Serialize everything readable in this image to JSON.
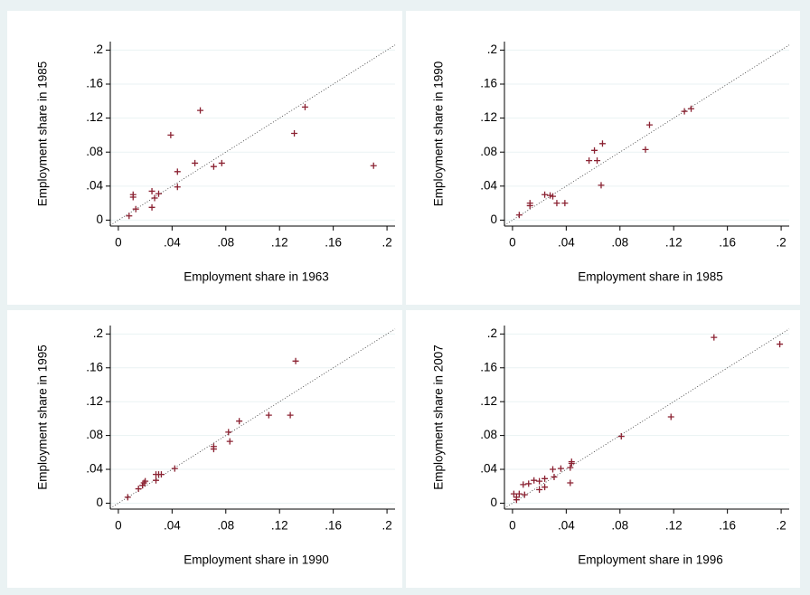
{
  "chart_data": [
    {
      "type": "scatter",
      "xlabel": "Employment share in 1963",
      "ylabel": "Employment share in 1985",
      "color": "#8b2232",
      "grid": true,
      "xlim": [
        -0.006,
        0.206
      ],
      "ylim": [
        -0.007,
        0.21
      ],
      "xticks": [
        0,
        {
          "value": 0.04,
          "label": ".04"
        },
        {
          "value": 0.08,
          "label": ".08"
        },
        {
          "value": 0.12,
          "label": ".12"
        },
        {
          "value": 0.16,
          "label": ".16"
        },
        {
          "value": 0.2,
          "label": ".2"
        }
      ],
      "yticks": [
        0,
        {
          "value": 0.04,
          "label": ".04"
        },
        {
          "value": 0.08,
          "label": ".08"
        },
        {
          "value": 0.12,
          "label": ".12"
        },
        {
          "value": 0.16,
          "label": ".16"
        },
        {
          "value": 0.2,
          "label": ".2"
        }
      ],
      "x": [
        0.008,
        0.011,
        0.011,
        0.013,
        0.025,
        0.025,
        0.027,
        0.03,
        0.039,
        0.044,
        0.044,
        0.057,
        0.061,
        0.071,
        0.077,
        0.131,
        0.139,
        0.19
      ],
      "values": [
        0.005,
        0.03,
        0.027,
        0.013,
        0.015,
        0.034,
        0.026,
        0.031,
        0.1,
        0.057,
        0.039,
        0.067,
        0.129,
        0.063,
        0.067,
        0.102,
        0.133,
        0.064
      ]
    },
    {
      "type": "scatter",
      "xlabel": "Employment share in 1985",
      "ylabel": "Employment share in 1990",
      "color": "#8b2232",
      "grid": true,
      "xlim": [
        -0.006,
        0.206
      ],
      "ylim": [
        -0.007,
        0.21
      ],
      "xticks": [
        0,
        {
          "value": 0.04,
          "label": ".04"
        },
        {
          "value": 0.08,
          "label": ".08"
        },
        {
          "value": 0.12,
          "label": ".12"
        },
        {
          "value": 0.16,
          "label": ".16"
        },
        {
          "value": 0.2,
          "label": ".2"
        }
      ],
      "yticks": [
        0,
        {
          "value": 0.04,
          "label": ".04"
        },
        {
          "value": 0.08,
          "label": ".08"
        },
        {
          "value": 0.12,
          "label": ".12"
        },
        {
          "value": 0.16,
          "label": ".16"
        },
        {
          "value": 0.2,
          "label": ".2"
        }
      ],
      "x": [
        0.005,
        0.013,
        0.013,
        0.024,
        0.028,
        0.03,
        0.033,
        0.039,
        0.057,
        0.061,
        0.063,
        0.067,
        0.066,
        0.099,
        0.102,
        0.128,
        0.133
      ],
      "values": [
        0.006,
        0.017,
        0.02,
        0.03,
        0.029,
        0.028,
        0.02,
        0.02,
        0.07,
        0.082,
        0.07,
        0.09,
        0.041,
        0.083,
        0.112,
        0.128,
        0.131
      ]
    },
    {
      "type": "scatter",
      "xlabel": "Employment share in 1990",
      "ylabel": "Employment share in 1995",
      "color": "#8b2232",
      "grid": true,
      "xlim": [
        -0.006,
        0.206
      ],
      "ylim": [
        -0.007,
        0.21
      ],
      "xticks": [
        0,
        {
          "value": 0.04,
          "label": ".04"
        },
        {
          "value": 0.08,
          "label": ".08"
        },
        {
          "value": 0.12,
          "label": ".12"
        },
        {
          "value": 0.16,
          "label": ".16"
        },
        {
          "value": 0.2,
          "label": ".2"
        }
      ],
      "yticks": [
        0,
        {
          "value": 0.04,
          "label": ".04"
        },
        {
          "value": 0.08,
          "label": ".08"
        },
        {
          "value": 0.12,
          "label": ".12"
        },
        {
          "value": 0.16,
          "label": ".16"
        },
        {
          "value": 0.2,
          "label": ".2"
        }
      ],
      "x": [
        0.007,
        0.015,
        0.018,
        0.019,
        0.02,
        0.028,
        0.028,
        0.03,
        0.032,
        0.042,
        0.071,
        0.071,
        0.082,
        0.083,
        0.09,
        0.112,
        0.128,
        0.132
      ],
      "values": [
        0.007,
        0.017,
        0.021,
        0.024,
        0.026,
        0.027,
        0.034,
        0.034,
        0.034,
        0.041,
        0.064,
        0.067,
        0.084,
        0.073,
        0.097,
        0.104,
        0.104,
        0.168
      ]
    },
    {
      "type": "scatter",
      "xlabel": "Employment share in 1996",
      "ylabel": "Employment share in 2007",
      "color": "#8b2232",
      "grid": true,
      "xlim": [
        -0.006,
        0.206
      ],
      "ylim": [
        -0.007,
        0.21
      ],
      "xticks": [
        0,
        {
          "value": 0.04,
          "label": ".04"
        },
        {
          "value": 0.08,
          "label": ".08"
        },
        {
          "value": 0.12,
          "label": ".12"
        },
        {
          "value": 0.16,
          "label": ".16"
        },
        {
          "value": 0.2,
          "label": ".2"
        }
      ],
      "yticks": [
        0,
        {
          "value": 0.04,
          "label": ".04"
        },
        {
          "value": 0.08,
          "label": ".08"
        },
        {
          "value": 0.12,
          "label": ".12"
        },
        {
          "value": 0.16,
          "label": ".16"
        },
        {
          "value": 0.2,
          "label": ".2"
        }
      ],
      "x": [
        0.001,
        0.003,
        0.003,
        0.005,
        0.008,
        0.009,
        0.012,
        0.016,
        0.02,
        0.02,
        0.024,
        0.024,
        0.03,
        0.031,
        0.036,
        0.043,
        0.044,
        0.044,
        0.043,
        0.081,
        0.118,
        0.15,
        0.199
      ],
      "values": [
        0.011,
        0.004,
        0.007,
        0.011,
        0.022,
        0.01,
        0.023,
        0.027,
        0.026,
        0.016,
        0.029,
        0.019,
        0.04,
        0.031,
        0.041,
        0.042,
        0.047,
        0.049,
        0.024,
        0.079,
        0.102,
        0.196,
        0.188
      ]
    }
  ]
}
